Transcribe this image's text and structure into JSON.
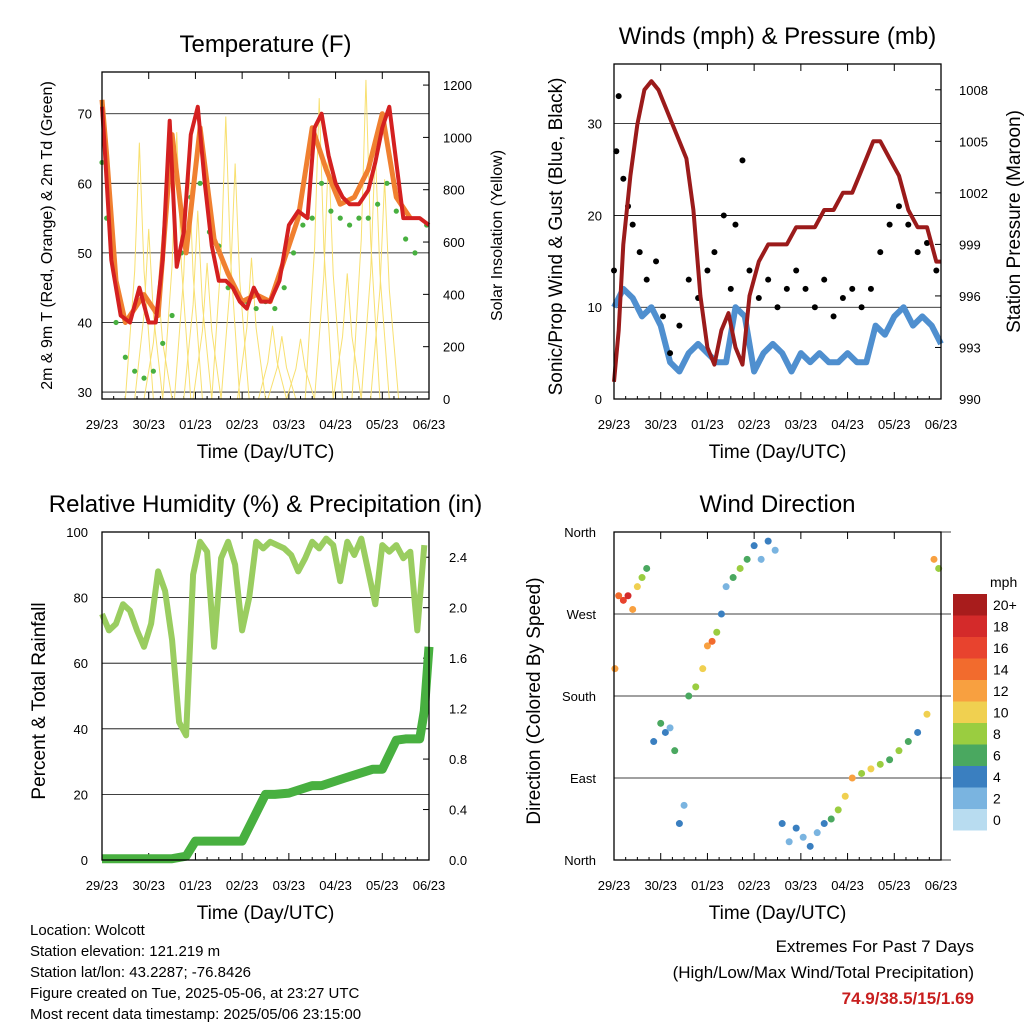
{
  "chart_data": [
    {
      "type": "scatter",
      "title": "Temperature (F)",
      "xlabel": "Time (Day/UTC)",
      "ylabel": "2m & 9m T (Red, Orange) & 2m Td (Green)",
      "ylabel_right": "Solar Insolation (Yellow)",
      "x_ticks": [
        "29/23",
        "30/23",
        "01/23",
        "02/23",
        "03/23",
        "04/23",
        "05/23",
        "06/23"
      ],
      "ylim": [
        29,
        76
      ],
      "y_ticks": [
        30,
        40,
        50,
        60,
        70
      ],
      "ylim_right": [
        0,
        1250
      ],
      "y_ticks_right": [
        0,
        200,
        400,
        600,
        800,
        1000,
        1200
      ],
      "grid": true,
      "series": [
        {
          "name": "2m T",
          "color": "#d42020",
          "x": [
            0,
            0.05,
            0.2,
            0.4,
            0.6,
            0.8,
            1.0,
            1.15,
            1.3,
            1.45,
            1.6,
            1.75,
            1.9,
            2.05,
            2.2,
            2.35,
            2.5,
            2.65,
            2.8,
            2.95,
            3.1,
            3.25,
            3.4,
            3.6,
            3.8,
            4.0,
            4.2,
            4.4,
            4.55,
            4.7,
            4.85,
            5.0,
            5.15,
            5.3,
            5.5,
            5.7,
            5.85,
            6.0,
            6.15,
            6.3,
            6.45,
            6.6,
            6.8,
            7.0
          ],
          "values": [
            71,
            66,
            49,
            41,
            40,
            45,
            40,
            40,
            49,
            69,
            48,
            53,
            67,
            71,
            60,
            51,
            46,
            46,
            45,
            43,
            42,
            45,
            43,
            43,
            46,
            54,
            56,
            55,
            68,
            70,
            64,
            60,
            58,
            57,
            57,
            59,
            63,
            68,
            71,
            63,
            55,
            55,
            55,
            54
          ]
        },
        {
          "name": "9m T",
          "color": "#f08030",
          "x": [
            0,
            0.1,
            0.3,
            0.5,
            0.7,
            0.9,
            1.2,
            1.5,
            1.8,
            2.1,
            2.4,
            2.7,
            3.0,
            3.3,
            3.6,
            3.9,
            4.2,
            4.5,
            4.8,
            5.1,
            5.4,
            5.7,
            6.0,
            6.3,
            6.6
          ],
          "values": [
            72,
            64,
            46,
            40,
            42,
            44,
            41,
            67,
            50,
            68,
            52,
            47,
            43,
            44,
            43,
            49,
            55,
            68,
            62,
            57,
            58,
            62,
            70,
            58,
            55
          ]
        },
        {
          "name": "2m Td",
          "color": "#48b040",
          "x": [
            0,
            0.1,
            0.3,
            0.5,
            0.7,
            0.9,
            1.1,
            1.3,
            1.5,
            1.7,
            1.9,
            2.1,
            2.3,
            2.5,
            2.7,
            2.9,
            3.1,
            3.3,
            3.5,
            3.7,
            3.9,
            4.1,
            4.3,
            4.5,
            4.7,
            4.9,
            5.1,
            5.3,
            5.5,
            5.7,
            5.9,
            6.1,
            6.3,
            6.5,
            6.7,
            6.95
          ],
          "values": [
            63,
            55,
            40,
            35,
            33,
            32,
            33,
            37,
            41,
            50,
            58,
            60,
            53,
            51,
            45,
            44,
            43,
            42,
            43,
            42,
            45,
            50,
            54,
            55,
            60,
            56,
            55,
            54,
            55,
            55,
            57,
            60,
            56,
            52,
            50,
            54
          ]
        },
        {
          "name": "Solar Insolation",
          "color": "#f8e070",
          "x": [
            0.8,
            1.0,
            1.2,
            1.6,
            1.85,
            2.05,
            2.25,
            2.65,
            2.85,
            3.2,
            3.65,
            3.85,
            4.25,
            4.65,
            4.85,
            5.25,
            5.65,
            5.85,
            6.05
          ],
          "values": [
            980,
            650,
            430,
            1020,
            950,
            720,
            520,
            1080,
            900,
            540,
            280,
            240,
            230,
            1150,
            950,
            480,
            1220,
            960,
            840
          ]
        }
      ]
    },
    {
      "type": "scatter",
      "title": "Winds (mph) & Pressure (mb)",
      "xlabel": "Time (Day/UTC)",
      "ylabel": "Sonic/Prop Wind & Gust (Blue, Black)",
      "ylabel_right": "Station Pressure (Maroon)",
      "x_ticks": [
        "29/23",
        "30/23",
        "01/23",
        "02/23",
        "03/23",
        "04/23",
        "05/23",
        "06/23"
      ],
      "ylim": [
        0,
        36.5
      ],
      "y_ticks": [
        0,
        10,
        20,
        30
      ],
      "ylim_right": [
        990,
        1009.5
      ],
      "y_ticks_right": [
        990,
        993,
        996,
        999,
        1002,
        1005,
        1008
      ],
      "grid": true,
      "series": [
        {
          "name": "Wind",
          "color": "#4f8fcf",
          "x": [
            0,
            0.2,
            0.4,
            0.6,
            0.8,
            1.0,
            1.2,
            1.4,
            1.6,
            1.8,
            2.0,
            2.2,
            2.4,
            2.6,
            2.8,
            3.0,
            3.2,
            3.4,
            3.6,
            3.8,
            4.0,
            4.2,
            4.4,
            4.6,
            4.8,
            5.0,
            5.2,
            5.4,
            5.6,
            5.8,
            6.0,
            6.2,
            6.4,
            6.6,
            6.8,
            7.0
          ],
          "values": [
            10,
            12,
            11,
            9,
            10,
            8,
            4,
            3,
            5,
            6,
            5,
            4,
            4,
            10,
            9,
            3,
            5,
            6,
            5,
            3,
            5,
            4,
            5,
            4,
            4,
            5,
            4,
            4,
            8,
            7,
            9,
            10,
            8,
            9,
            8,
            6
          ]
        },
        {
          "name": "Gust",
          "color": "#000000",
          "x": [
            0,
            0.05,
            0.1,
            0.2,
            0.3,
            0.4,
            0.55,
            0.7,
            0.9,
            1.05,
            1.2,
            1.4,
            1.6,
            1.8,
            2.0,
            2.15,
            2.35,
            2.5,
            2.6,
            2.75,
            2.9,
            3.1,
            3.3,
            3.5,
            3.7,
            3.9,
            4.1,
            4.3,
            4.5,
            4.7,
            4.9,
            5.1,
            5.3,
            5.5,
            5.7,
            5.9,
            6.1,
            6.3,
            6.5,
            6.7,
            6.9
          ],
          "values": [
            14,
            27,
            33,
            24,
            21,
            19,
            16,
            13,
            15,
            9,
            5,
            8,
            13,
            11,
            14,
            16,
            20,
            12,
            19,
            26,
            14,
            11,
            13,
            10,
            12,
            14,
            12,
            10,
            13,
            9,
            11,
            12,
            10,
            12,
            16,
            19,
            21,
            19,
            16,
            17,
            14
          ]
        },
        {
          "name": "Pressure",
          "color": "#9b1b1b",
          "x": [
            0,
            0.1,
            0.2,
            0.35,
            0.5,
            0.65,
            0.8,
            0.95,
            1.1,
            1.25,
            1.4,
            1.55,
            1.7,
            1.85,
            2.0,
            2.15,
            2.3,
            2.45,
            2.6,
            2.75,
            2.9,
            3.1,
            3.3,
            3.5,
            3.7,
            3.9,
            4.1,
            4.3,
            4.5,
            4.7,
            4.9,
            5.1,
            5.25,
            5.4,
            5.55,
            5.7,
            5.9,
            6.1,
            6.3,
            6.5,
            6.7,
            6.9,
            7.0
          ],
          "values": [
            991,
            994,
            999,
            1003,
            1006,
            1008,
            1008.5,
            1008,
            1007,
            1006,
            1005,
            1004,
            1001,
            996,
            993,
            992,
            994,
            995,
            993,
            992,
            996,
            998,
            999,
            999,
            999,
            1000,
            1000,
            1000,
            1001,
            1001,
            1002,
            1002,
            1003,
            1004,
            1005,
            1005,
            1004,
            1003,
            1001,
            1000,
            1000,
            998,
            998
          ]
        }
      ]
    },
    {
      "type": "scatter",
      "title": "Relative Humidity (%) & Precipitation (in)",
      "xlabel": "Time (Day/UTC)",
      "ylabel": "Percent & Total Rainfall",
      "x_ticks": [
        "29/23",
        "30/23",
        "01/23",
        "02/23",
        "03/23",
        "04/23",
        "05/23",
        "06/23"
      ],
      "ylim": [
        0,
        100
      ],
      "y_ticks": [
        0,
        20,
        40,
        60,
        80,
        100
      ],
      "ylim_right": [
        0,
        2.6
      ],
      "y_ticks_right": [
        "0.0",
        "0.4",
        "0.8",
        "1.2",
        "1.6",
        "2.0",
        "2.4"
      ],
      "grid": true,
      "series": [
        {
          "name": "Relative Humidity",
          "color": "#9acd60",
          "x": [
            0,
            0.15,
            0.3,
            0.45,
            0.6,
            0.75,
            0.9,
            1.05,
            1.2,
            1.35,
            1.5,
            1.65,
            1.8,
            1.95,
            2.1,
            2.25,
            2.4,
            2.55,
            2.7,
            2.85,
            3.0,
            3.15,
            3.3,
            3.45,
            3.6,
            3.75,
            3.9,
            4.05,
            4.2,
            4.35,
            4.5,
            4.65,
            4.8,
            4.95,
            5.1,
            5.25,
            5.4,
            5.55,
            5.7,
            5.85,
            6.0,
            6.15,
            6.3,
            6.45,
            6.6,
            6.75,
            6.9
          ],
          "values": [
            75,
            70,
            72,
            78,
            76,
            70,
            65,
            72,
            88,
            82,
            67,
            42,
            38,
            87,
            97,
            94,
            65,
            92,
            97,
            90,
            70,
            80,
            97,
            95,
            97,
            96,
            95,
            93,
            88,
            92,
            97,
            95,
            98,
            96,
            85,
            97,
            93,
            98,
            88,
            78,
            96,
            94,
            96,
            92,
            94,
            70,
            96
          ]
        },
        {
          "name": "Total Precipitation",
          "color": "#48b040",
          "x": [
            0,
            0.5,
            1.0,
            1.5,
            1.8,
            2.0,
            2.4,
            2.8,
            3.0,
            3.5,
            3.7,
            4.0,
            4.5,
            4.7,
            5.2,
            5.8,
            6.0,
            6.3,
            6.5,
            6.8,
            6.9,
            7.0
          ],
          "values": [
            0.01,
            0.01,
            0.01,
            0.01,
            0.03,
            0.15,
            0.15,
            0.15,
            0.15,
            0.52,
            0.52,
            0.53,
            0.59,
            0.59,
            0.65,
            0.72,
            0.72,
            0.95,
            0.96,
            0.96,
            1.18,
            1.69
          ]
        }
      ]
    },
    {
      "type": "scatter",
      "title": "Wind Direction",
      "xlabel": "Time (Day/UTC)",
      "ylabel": "Direction (Colored By Speed)",
      "x_ticks": [
        "29/23",
        "30/23",
        "01/23",
        "02/23",
        "03/23",
        "04/23",
        "05/23",
        "06/23"
      ],
      "y_ticks": [
        "North",
        "East",
        "South",
        "West",
        "North"
      ],
      "ylim": [
        0,
        360
      ],
      "grid": true,
      "legend": {
        "title": "mph",
        "placement": "right",
        "labels": [
          "20+",
          "18",
          "16",
          "14",
          "12",
          "10",
          "8",
          "6",
          "4",
          "2",
          "0"
        ],
        "colors": [
          "#a81c1c",
          "#d42a2a",
          "#e8432e",
          "#f26b2d",
          "#f8a040",
          "#f0d050",
          "#9acd40",
          "#4aa860",
          "#3a7fc0",
          "#7ab4e0",
          "#b8dcf0"
        ]
      },
      "series": [
        {
          "name": "Direction",
          "x": [
            0.02,
            0.1,
            0.2,
            0.3,
            0.4,
            0.5,
            0.6,
            0.7,
            0.85,
            1.0,
            1.1,
            1.2,
            1.3,
            1.4,
            1.5,
            1.6,
            1.75,
            1.9,
            2.0,
            2.1,
            2.2,
            2.3,
            2.4,
            2.55,
            2.7,
            2.85,
            3.0,
            3.15,
            3.3,
            3.45,
            3.6,
            3.75,
            3.9,
            4.05,
            4.2,
            4.35,
            4.5,
            4.65,
            4.8,
            4.95,
            5.1,
            5.3,
            5.5,
            5.7,
            5.9,
            6.1,
            6.3,
            6.5,
            6.7,
            6.85,
            6.95
          ],
          "values": [
            210,
            290,
            285,
            290,
            275,
            300,
            310,
            320,
            130,
            150,
            140,
            145,
            120,
            40,
            60,
            180,
            190,
            210,
            235,
            240,
            250,
            270,
            300,
            310,
            320,
            330,
            345,
            330,
            350,
            340,
            40,
            20,
            35,
            25,
            15,
            30,
            40,
            45,
            55,
            70,
            90,
            95,
            100,
            105,
            110,
            120,
            130,
            140,
            160,
            330,
            320
          ],
          "speed": [
            12,
            14,
            16,
            18,
            12,
            10,
            8,
            6,
            4,
            6,
            4,
            2,
            6,
            4,
            2,
            6,
            8,
            10,
            12,
            14,
            8,
            4,
            2,
            6,
            8,
            6,
            4,
            2,
            4,
            2,
            4,
            2,
            4,
            2,
            4,
            2,
            4,
            6,
            8,
            10,
            12,
            8,
            10,
            8,
            6,
            8,
            6,
            4,
            10,
            12,
            8
          ]
        }
      ]
    }
  ],
  "info": {
    "location": "Location: Wolcott",
    "elevation": "Station elevation: 121.219 m",
    "latlon": "Station lat/lon: 43.2287; -76.8426",
    "created": "Figure created on Tue, 2025-05-06, at 23:27 UTC",
    "recent": "Most recent data timestamp: 2025/05/06 23:15:00"
  },
  "extremes": {
    "line1": "Extremes For Past 7 Days",
    "line2": "(High/Low/Max Wind/Total Precipitation)",
    "values": "74.9/38.5/15/1.69"
  }
}
